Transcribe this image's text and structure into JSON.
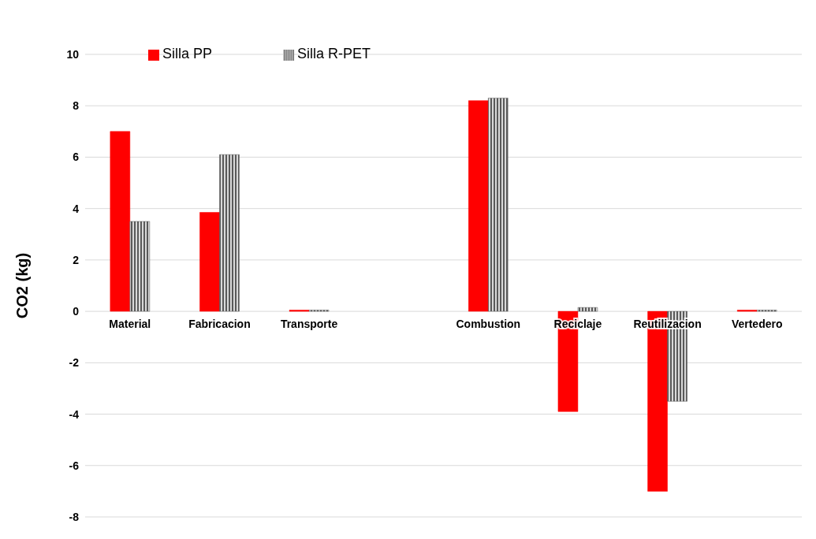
{
  "chart_data": {
    "type": "bar",
    "ylabel": "CO2 (kg)",
    "categories": [
      "Material",
      "Fabricacion",
      "Transporte",
      null,
      "Combustion",
      "Reciclaje",
      "Reutilizacion",
      "Vertedero"
    ],
    "series": [
      {
        "name": "Silla PP",
        "color": "#ff0000",
        "values": [
          7.0,
          3.85,
          0.05,
          null,
          8.2,
          -3.9,
          -7.0,
          0.05
        ]
      },
      {
        "name": "Silla R-PET",
        "color": "#595959",
        "values": [
          3.5,
          6.1,
          0.05,
          null,
          8.3,
          0.15,
          -3.5,
          0.05
        ]
      }
    ],
    "ylim": [
      -8,
      10
    ],
    "yticks": [
      -8,
      -6,
      -4,
      -2,
      0,
      2,
      4,
      6,
      8,
      10
    ],
    "grid": "y",
    "legend": "top left"
  }
}
